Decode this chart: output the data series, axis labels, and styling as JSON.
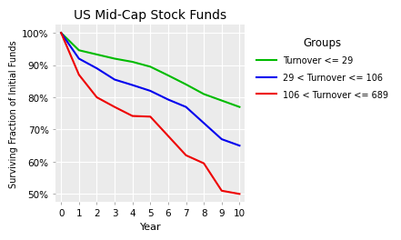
{
  "title": "US Mid-Cap Stock Funds",
  "xlabel": "Year",
  "ylabel": "Surviving Fraction of Initial Funds",
  "legend_title": "Groups",
  "ylim": [
    0.475,
    1.025
  ],
  "xlim": [
    -0.3,
    10.3
  ],
  "yticks": [
    0.5,
    0.6,
    0.7,
    0.8,
    0.9,
    1.0
  ],
  "xticks": [
    0,
    1,
    2,
    3,
    4,
    5,
    6,
    7,
    8,
    9,
    10
  ],
  "fig_bg_color": "#FFFFFF",
  "plot_bg_color": "#EBEBEB",
  "grid_color": "#FFFFFF",
  "series": [
    {
      "label": "Turnover <= 29",
      "color": "#00BB00",
      "x": [
        0,
        1,
        2,
        3,
        4,
        5,
        6,
        7,
        8,
        9,
        10
      ],
      "y": [
        1.0,
        0.946,
        0.933,
        0.92,
        0.91,
        0.895,
        0.868,
        0.84,
        0.81,
        0.79,
        0.77
      ]
    },
    {
      "label": "29 < Turnover <= 106",
      "color": "#0000EE",
      "x": [
        0,
        1,
        2,
        3,
        4,
        5,
        6,
        7,
        8,
        9,
        10
      ],
      "y": [
        1.0,
        0.92,
        0.89,
        0.855,
        0.838,
        0.82,
        0.793,
        0.77,
        0.72,
        0.67,
        0.65
      ]
    },
    {
      "label": "106 < Turnover <= 689",
      "color": "#EE0000",
      "x": [
        0,
        1,
        2,
        3,
        4,
        5,
        6,
        7,
        8,
        9,
        10
      ],
      "y": [
        1.0,
        0.87,
        0.8,
        0.77,
        0.742,
        0.74,
        0.68,
        0.62,
        0.595,
        0.51,
        0.5
      ]
    }
  ]
}
